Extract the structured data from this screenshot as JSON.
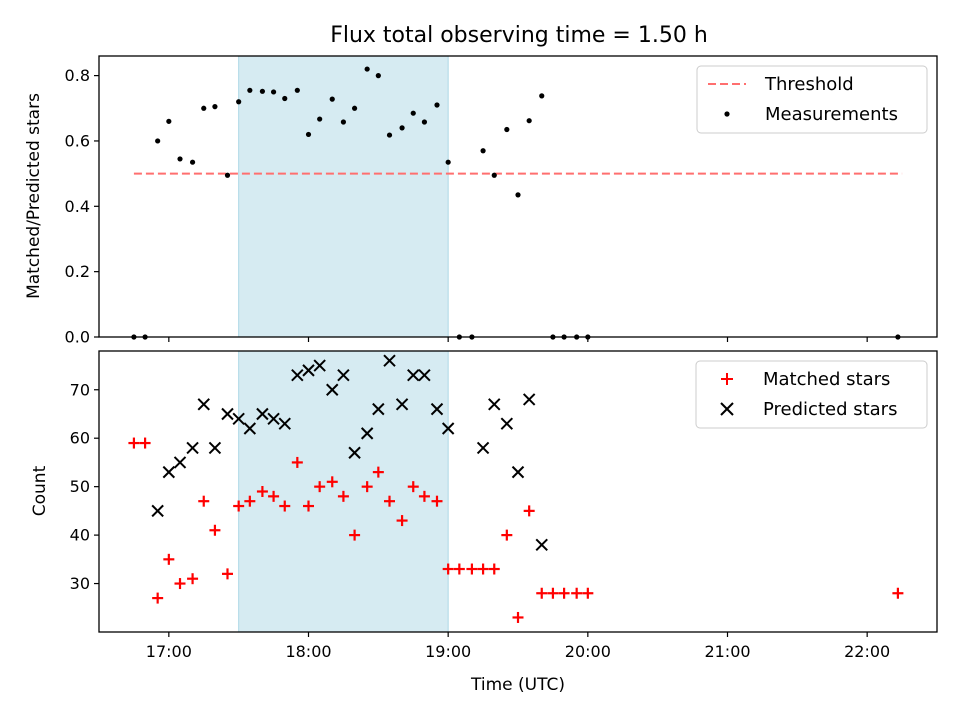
{
  "title": "Flux total observing time = 1.50 h",
  "colors": {
    "threshold": "#ff6f6f",
    "measurement": "#000000",
    "matched": "#ff0000",
    "predicted": "#000000",
    "span": "#add8e6"
  },
  "chart_data": [
    {
      "type": "scatter",
      "xlabel": "",
      "ylabel": "Matched/Predicted stars",
      "x_axis": "time (hours UTC)",
      "xlim": [
        16.5,
        22.5
      ],
      "ylim": [
        0,
        0.86
      ],
      "yticks": [
        0.0,
        0.2,
        0.4,
        0.6,
        0.8
      ],
      "ytick_labels": [
        "0.0",
        "0.2",
        "0.4",
        "0.6",
        "0.8"
      ],
      "shaded_span": [
        17.5,
        19.0
      ],
      "legend": [
        "Threshold",
        "Measurements"
      ],
      "legend_position": "top-right",
      "threshold": {
        "name": "Threshold",
        "y": 0.5,
        "x": [
          16.75,
          22.25
        ],
        "style": "dashed"
      },
      "series": [
        {
          "name": "Measurements",
          "marker": "dot",
          "points": [
            [
              16.75,
              0.0
            ],
            [
              16.83,
              0.0
            ],
            [
              16.92,
              0.6
            ],
            [
              17.0,
              0.66
            ],
            [
              17.08,
              0.545
            ],
            [
              17.17,
              0.535
            ],
            [
              17.25,
              0.7
            ],
            [
              17.33,
              0.705
            ],
            [
              17.42,
              0.495
            ],
            [
              17.5,
              0.72
            ],
            [
              17.58,
              0.755
            ],
            [
              17.67,
              0.752
            ],
            [
              17.75,
              0.75
            ],
            [
              17.83,
              0.73
            ],
            [
              17.92,
              0.755
            ],
            [
              18.0,
              0.62
            ],
            [
              18.08,
              0.667
            ],
            [
              18.17,
              0.728
            ],
            [
              18.25,
              0.658
            ],
            [
              18.33,
              0.7
            ],
            [
              18.42,
              0.82
            ],
            [
              18.5,
              0.8
            ],
            [
              18.58,
              0.618
            ],
            [
              18.67,
              0.64
            ],
            [
              18.75,
              0.685
            ],
            [
              18.83,
              0.658
            ],
            [
              18.92,
              0.71
            ],
            [
              19.0,
              0.535
            ],
            [
              19.08,
              0.0
            ],
            [
              19.17,
              0.0
            ],
            [
              19.25,
              0.57
            ],
            [
              19.33,
              0.495
            ],
            [
              19.42,
              0.635
            ],
            [
              19.5,
              0.435
            ],
            [
              19.58,
              0.662
            ],
            [
              19.67,
              0.738
            ],
            [
              19.75,
              0.0
            ],
            [
              19.83,
              0.0
            ],
            [
              19.92,
              0.0
            ],
            [
              20.0,
              0.0
            ],
            [
              22.22,
              0.0
            ]
          ]
        }
      ]
    },
    {
      "type": "scatter",
      "xlabel": "Time (UTC)",
      "ylabel": "Count",
      "xlim": [
        16.5,
        22.5
      ],
      "ylim": [
        20,
        78
      ],
      "yticks": [
        30,
        40,
        50,
        60,
        70
      ],
      "ytick_labels": [
        "30",
        "40",
        "50",
        "60",
        "70"
      ],
      "xticks": [
        17,
        18,
        19,
        20,
        21,
        22
      ],
      "xtick_labels": [
        "17:00",
        "18:00",
        "19:00",
        "20:00",
        "21:00",
        "22:00"
      ],
      "shaded_span": [
        17.5,
        19.0
      ],
      "legend": [
        "Matched stars",
        "Predicted stars"
      ],
      "legend_position": "top-right",
      "series": [
        {
          "name": "Matched stars",
          "marker": "plus",
          "points": [
            [
              16.75,
              59
            ],
            [
              16.83,
              59
            ],
            [
              16.92,
              27
            ],
            [
              17.0,
              35
            ],
            [
              17.08,
              30
            ],
            [
              17.17,
              31
            ],
            [
              17.25,
              47
            ],
            [
              17.33,
              41
            ],
            [
              17.42,
              32
            ],
            [
              17.5,
              46
            ],
            [
              17.58,
              47
            ],
            [
              17.67,
              49
            ],
            [
              17.75,
              48
            ],
            [
              17.83,
              46
            ],
            [
              17.92,
              55
            ],
            [
              18.0,
              46
            ],
            [
              18.08,
              50
            ],
            [
              18.17,
              51
            ],
            [
              18.25,
              48
            ],
            [
              18.33,
              40
            ],
            [
              18.42,
              50
            ],
            [
              18.5,
              53
            ],
            [
              18.58,
              47
            ],
            [
              18.67,
              43
            ],
            [
              18.75,
              50
            ],
            [
              18.83,
              48
            ],
            [
              18.92,
              47
            ],
            [
              19.0,
              33
            ],
            [
              19.08,
              33
            ],
            [
              19.17,
              33
            ],
            [
              19.25,
              33
            ],
            [
              19.33,
              33
            ],
            [
              19.42,
              40
            ],
            [
              19.5,
              23
            ],
            [
              19.58,
              45
            ],
            [
              19.67,
              28
            ],
            [
              19.75,
              28
            ],
            [
              19.83,
              28
            ],
            [
              19.92,
              28
            ],
            [
              20.0,
              28
            ],
            [
              22.22,
              28
            ]
          ]
        },
        {
          "name": "Predicted stars",
          "marker": "x",
          "points": [
            [
              16.92,
              45
            ],
            [
              17.0,
              53
            ],
            [
              17.08,
              55
            ],
            [
              17.17,
              58
            ],
            [
              17.25,
              67
            ],
            [
              17.33,
              58
            ],
            [
              17.42,
              65
            ],
            [
              17.5,
              64
            ],
            [
              17.58,
              62
            ],
            [
              17.67,
              65
            ],
            [
              17.75,
              64
            ],
            [
              17.83,
              63
            ],
            [
              17.92,
              73
            ],
            [
              18.0,
              74
            ],
            [
              18.08,
              75
            ],
            [
              18.17,
              70
            ],
            [
              18.25,
              73
            ],
            [
              18.33,
              57
            ],
            [
              18.42,
              61
            ],
            [
              18.5,
              66
            ],
            [
              18.58,
              76
            ],
            [
              18.67,
              67
            ],
            [
              18.75,
              73
            ],
            [
              18.83,
              73
            ],
            [
              18.92,
              66
            ],
            [
              19.0,
              62
            ],
            [
              19.25,
              58
            ],
            [
              19.33,
              67
            ],
            [
              19.42,
              63
            ],
            [
              19.5,
              53
            ],
            [
              19.58,
              68
            ],
            [
              19.67,
              38
            ]
          ]
        }
      ]
    }
  ]
}
